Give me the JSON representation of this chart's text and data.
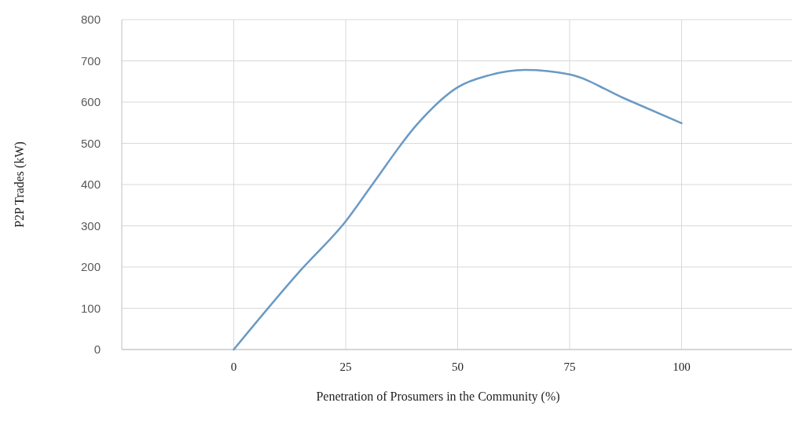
{
  "chart_data": {
    "type": "line",
    "xlabel": "Penetration of Prosumers in the Community (%)",
    "ylabel": "P2P Trades (kW)",
    "x": [
      0,
      15,
      25,
      31,
      41,
      50,
      57,
      65,
      75,
      87,
      100
    ],
    "series": [
      {
        "color": "#6a9ac4",
        "values": [
          0,
          193,
          311,
          401,
          547,
          636,
          665,
          678,
          667,
          610,
          549
        ]
      }
    ],
    "xlim": [
      -25,
      125
    ],
    "xticks": [
      0,
      25,
      50,
      75,
      100
    ],
    "ylim": [
      0,
      800
    ],
    "yticks": [
      0,
      100,
      200,
      300,
      400,
      500,
      600,
      700,
      800
    ],
    "grid": true,
    "marker": "none",
    "line_style": "solid"
  }
}
